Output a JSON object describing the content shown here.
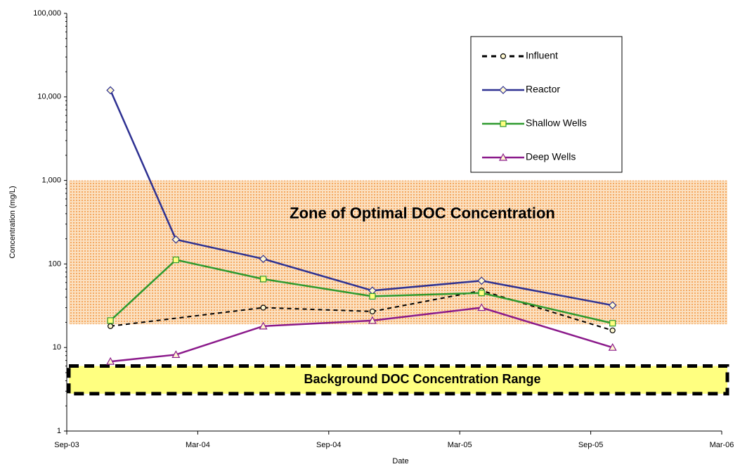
{
  "chart_data": {
    "type": "line",
    "x_label": "Date",
    "y_label": "Concentration (mg/L)",
    "log_y": true,
    "legend": "upper right",
    "xlim": [
      "2003-09",
      "2006-03"
    ],
    "xticks": [
      {
        "value": "2003-09",
        "label": "Sep-03"
      },
      {
        "value": "2004-03",
        "label": "Mar-04"
      },
      {
        "value": "2004-09",
        "label": "Sep-04"
      },
      {
        "value": "2005-03",
        "label": "Mar-05"
      },
      {
        "value": "2005-09",
        "label": "Sep-05"
      },
      {
        "value": "2006-03",
        "label": "Mar-06"
      }
    ],
    "ylim": [
      1,
      100000
    ],
    "yticks": [
      1,
      10,
      100,
      {
        "value": 1000,
        "label": "1,000"
      },
      {
        "value": 10000,
        "label": "10,000"
      },
      {
        "value": 100000,
        "label": "100,000"
      }
    ],
    "bands": [
      {
        "label": "Zone of Optimal DOC Concentration",
        "range": [
          19,
          1000
        ],
        "color": "#f9c38a"
      },
      {
        "label": "Background DOC Concentration Range",
        "range": [
          2.8,
          6
        ],
        "color": "#ffff80"
      }
    ],
    "series": [
      {
        "name": "Influent",
        "color": "#000000",
        "dash": true,
        "marker": "circle",
        "x": [
          "2003-11",
          "2004-06",
          "2004-11",
          "2005-04",
          "2005-10"
        ],
        "values": [
          18,
          30,
          27,
          48,
          16
        ]
      },
      {
        "name": "Reactor",
        "color": "#2e3192",
        "dash": false,
        "marker": "diamond",
        "x": [
          "2003-11",
          "2004-02",
          "2004-06",
          "2004-11",
          "2005-04",
          "2005-10"
        ],
        "values": [
          12000,
          196,
          115,
          48,
          63,
          32
        ]
      },
      {
        "name": "Shallow Wells",
        "color": "#2e9a2e",
        "dash": false,
        "marker": "square",
        "x": [
          "2003-11",
          "2004-02",
          "2004-06",
          "2004-11",
          "2005-04",
          "2005-10"
        ],
        "values": [
          21,
          112,
          66,
          41,
          45,
          19.5
        ]
      },
      {
        "name": "Deep Wells",
        "color": "#8b1a8b",
        "dash": false,
        "marker": "triangle",
        "x": [
          "2003-11",
          "2004-02",
          "2004-06",
          "2004-11",
          "2005-04",
          "2005-10"
        ],
        "values": [
          6.8,
          8.2,
          18,
          21,
          30,
          10
        ]
      }
    ]
  }
}
